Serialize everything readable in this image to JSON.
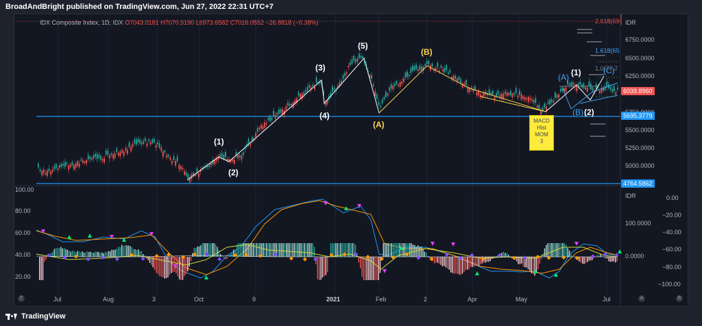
{
  "header": {
    "published_by": "BroadAndBright published on TradingView.com, Jun 27, 2022 22:31 UTC+7"
  },
  "legend": {
    "symbol": "IDX Composite Index, 1D, IDX",
    "open": "O7043.0181",
    "high": "H7070.5190",
    "low": "L6973.6582",
    "close": "C7016.0552",
    "change": "−26.8818 (−0.38%)"
  },
  "price_axis": {
    "currency": "IDR",
    "ticks": [
      "6750.0000",
      "6500.0000",
      "6250.0000",
      "5750.0000",
      "5500.0000",
      "5250.0000",
      "5000.0000"
    ],
    "last_price_tag": "6039.8960",
    "line_upper_tag": "5695.3779",
    "line_lower_tag": "4764.5862",
    "fib_tags": [
      "2.618(69",
      "1.618(65",
      "1.0(77.7"
    ]
  },
  "elliott_labels": {
    "impulse": [
      "(1)",
      "(2)",
      "(3)",
      "(4)",
      "(5)"
    ],
    "correction": [
      "(A)",
      "(B)"
    ],
    "right_impulse": [
      "(A)",
      "(1)",
      "(C)",
      "(B)",
      "(2)"
    ]
  },
  "note_box": {
    "lines": [
      "MACD",
      "Hist",
      "MOM",
      "3"
    ]
  },
  "indicator_axis": {
    "left_ticks": [
      "100.00",
      "80.00",
      "60.00",
      "40.00",
      "20.00"
    ],
    "right_currency": "IDR",
    "right_mid_tick": "100.0000",
    "right_zero_tick": "0.0000",
    "far_right_ticks": [
      "0.00",
      "−20.00",
      "−40.00",
      "−60.00",
      "−80.00",
      "−100.00"
    ]
  },
  "time_axis": {
    "labels": [
      "Jul",
      "Aug",
      "3",
      "Oct",
      "9",
      "2021",
      "Feb",
      "2",
      "Apr",
      "May",
      "Jul"
    ]
  },
  "footer": {
    "brand": "TradingView",
    "left_button": "Z",
    "right_buttons": [
      "A",
      "B"
    ]
  },
  "colors": {
    "background": "#131722",
    "up": "#26a69a",
    "down": "#ef5350",
    "wave_white": "#ffffff",
    "wave_yellow": "#ffd54f",
    "wave_blue": "#42a5f5",
    "support_line": "#2196f3",
    "rsi_blue": "#2196f3",
    "rsi_orange": "#ff9800"
  }
}
